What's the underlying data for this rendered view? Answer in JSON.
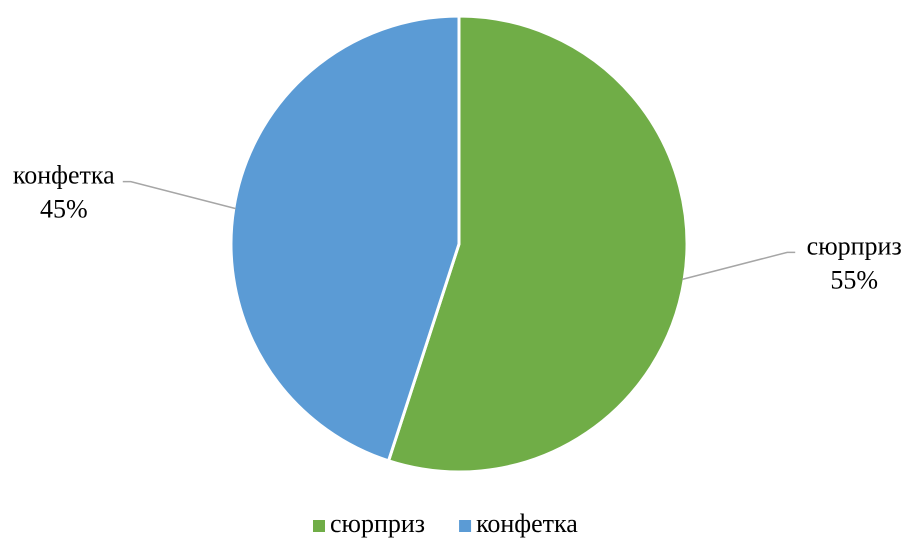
{
  "chart_data": {
    "type": "pie",
    "categories": [
      "сюрприз",
      "конфетка"
    ],
    "values": [
      55,
      45
    ],
    "value_labels": [
      "55%",
      "45%"
    ],
    "colors": [
      "#70ad47",
      "#5b9bd5"
    ],
    "legend": "bottom"
  }
}
